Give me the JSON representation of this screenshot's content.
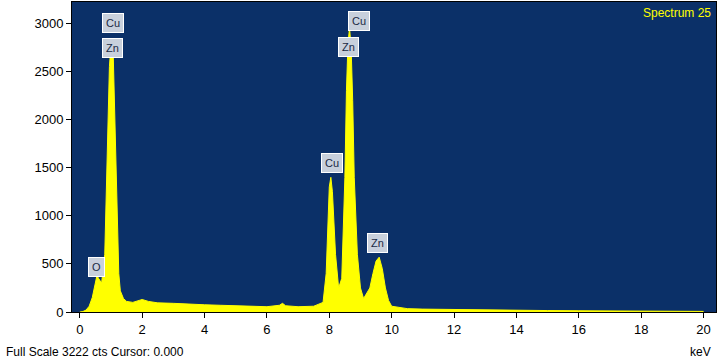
{
  "chart_data": {
    "type": "area",
    "title": "Spectrum 25",
    "x_label": "keV",
    "footer": "Full Scale 3222 cts Cursor: 0.000",
    "color": "#ffff00",
    "x": [
      0.0,
      0.1,
      0.2,
      0.3,
      0.4,
      0.5,
      0.55,
      0.6,
      0.7,
      0.8,
      0.85,
      0.9,
      0.95,
      1.0,
      1.03,
      1.07,
      1.1,
      1.15,
      1.2,
      1.25,
      1.3,
      1.4,
      1.5,
      1.7,
      1.9,
      2.0,
      2.2,
      2.5,
      3.0,
      3.5,
      4.0,
      4.5,
      5.0,
      5.5,
      6.0,
      6.4,
      6.5,
      6.6,
      7.0,
      7.5,
      7.8,
      7.9,
      7.95,
      8.0,
      8.05,
      8.1,
      8.2,
      8.3,
      8.4,
      8.5,
      8.55,
      8.6,
      8.65,
      8.7,
      8.75,
      8.8,
      8.9,
      9.0,
      9.1,
      9.3,
      9.4,
      9.5,
      9.6,
      9.7,
      9.8,
      9.9,
      10.0,
      10.5,
      11.0,
      12.0,
      13.0,
      14.0,
      15.0,
      16.0,
      17.0,
      18.0,
      19.0,
      20.0
    ],
    "values": [
      0,
      5,
      20,
      60,
      150,
      330,
      380,
      350,
      300,
      600,
      1200,
      2000,
      2550,
      2780,
      2800,
      2700,
      2300,
      1500,
      800,
      400,
      220,
      140,
      110,
      100,
      120,
      130,
      110,
      95,
      90,
      80,
      75,
      70,
      65,
      60,
      55,
      70,
      90,
      65,
      55,
      60,
      100,
      400,
      900,
      1300,
      1400,
      1250,
      600,
      250,
      350,
      1400,
      2300,
      2800,
      2950,
      2750,
      2200,
      1400,
      600,
      250,
      140,
      250,
      400,
      530,
      570,
      450,
      250,
      120,
      60,
      35,
      30,
      25,
      20,
      18,
      15,
      13,
      12,
      10,
      8,
      6
    ],
    "xlim": [
      -0.25,
      20.4
    ],
    "xticks": [
      0,
      2,
      4,
      6,
      8,
      10,
      12,
      14,
      16,
      18,
      20
    ],
    "ylim": [
      0,
      3222
    ],
    "yticks": [
      0,
      500,
      1000,
      1500,
      2000,
      2500,
      3000
    ],
    "grid": false,
    "annotations": [
      {
        "text": "Cu",
        "x": 1.05,
        "y": 3000
      },
      {
        "text": "Zn",
        "x": 1.05,
        "y": 2740
      },
      {
        "text": "O",
        "x": 0.54,
        "y": 467
      },
      {
        "text": "Cu",
        "x": 8.1,
        "y": 1547
      },
      {
        "text": "Cu",
        "x": 8.95,
        "y": 3020
      },
      {
        "text": "Zn",
        "x": 8.63,
        "y": 2750
      },
      {
        "text": "Zn",
        "x": 9.55,
        "y": 716
      }
    ]
  }
}
